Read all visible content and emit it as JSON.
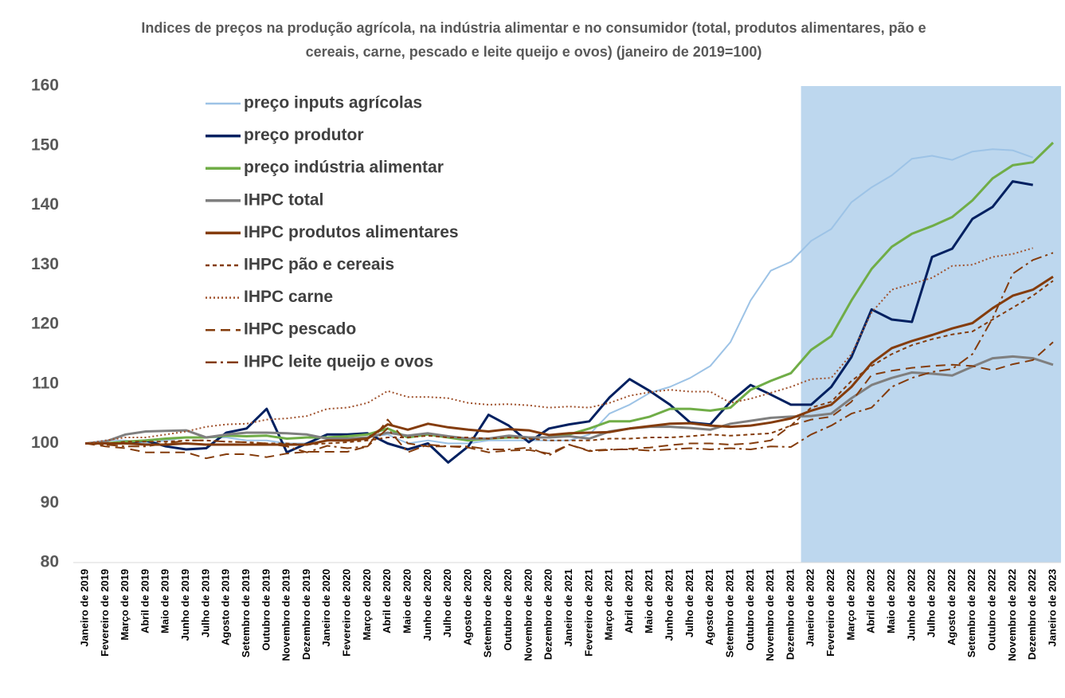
{
  "chart_data": {
    "type": "line",
    "title": "Indices de preços na produção agrícola, na indústria alimentar e no consumidor (total, produtos alimentares, pão e cereais, carne, pescado e leite queijo e ovos) (janeiro de 2019=100)",
    "categories": [
      "Janeiro de 2019",
      "Fevereiro de 2019",
      "Março de 2019",
      "Abril de 2019",
      "Maio de 2019",
      "Junho de 2019",
      "Julho de 2019",
      "Agosto de 2019",
      "Setembro de 2019",
      "Outubro de 2019",
      "Novembro de 2019",
      "Dezembro de 2019",
      "Janeiro de 2020",
      "Fevereiro de 2020",
      "Março de 2020",
      "Abril de 2020",
      "Maio de 2020",
      "Junho de 2020",
      "Julho de 2020",
      "Agosto de 2020",
      "Setembro de 2020",
      "Outubro de 2020",
      "Novembro de 2020",
      "Dezembro de 2020",
      "Janeiro de 2021",
      "Fevereiro de 2021",
      "Março de 2021",
      "Abril de 2021",
      "Maio de 2021",
      "Junho de 2021",
      "Julho de 2021",
      "Agosto de 2021",
      "Setembro de 2021",
      "Outubro de 2021",
      "Novembro de 2021",
      "Dezembro de 2021",
      "Janeiro de 2022",
      "Fevereiro de 2022",
      "Março de 2022",
      "Abril de 2022",
      "Maio de 2022",
      "Junho de 2022",
      "Julho de 2022",
      "Agosto de 2022",
      "Setembro de 2022",
      "Outubro de 2022",
      "Novembro de 2022",
      "Dezembro de 2022",
      "Janeiro de 2023"
    ],
    "series": [
      {
        "name": "preço inputs agrícolas",
        "color": "#9dc3e6",
        "dash": "solid",
        "width": 2,
        "values": [
          100,
          100.5,
          100.5,
          100,
          100.5,
          101,
          101,
          101,
          100.5,
          100.5,
          100,
          100,
          100.5,
          100.5,
          101,
          101.5,
          100,
          100.5,
          100,
          100,
          100.5,
          100.5,
          100.5,
          100.5,
          100.5,
          101.5,
          105,
          106.5,
          108.5,
          109.5,
          111,
          113,
          117,
          124,
          129,
          130.5,
          134,
          136,
          140.5,
          143,
          145,
          147.8,
          148.3,
          147.6,
          149,
          149.4,
          149.2,
          148,
          null
        ]
      },
      {
        "name": "preço produtor",
        "color": "#002060",
        "dash": "solid",
        "width": 3,
        "values": [
          100,
          100,
          100,
          100.5,
          99.5,
          99,
          99.2,
          101.8,
          102.5,
          105.8,
          98.5,
          100,
          101.5,
          101.5,
          101.7,
          100,
          99,
          100,
          96.8,
          99.5,
          104.8,
          103,
          100.2,
          102.5,
          103.2,
          103.7,
          107.7,
          110.8,
          108.8,
          106.5,
          103.5,
          103.2,
          107,
          109.8,
          108.2,
          106.5,
          106.5,
          109.5,
          114.5,
          122.5,
          120.8,
          120.4,
          131.3,
          132.7,
          137.7,
          139.7,
          144,
          143.4,
          null
        ]
      },
      {
        "name": "preço indústria alimentar",
        "color": "#70ad47",
        "dash": "solid",
        "width": 3,
        "values": [
          100,
          100,
          100.3,
          100.5,
          100.8,
          101,
          101,
          101.3,
          101.2,
          101.3,
          100.8,
          101,
          101,
          101.2,
          101.5,
          102.5,
          101,
          101.5,
          101,
          100.5,
          100.8,
          101,
          101,
          101,
          101.5,
          102.5,
          103.7,
          103.7,
          104.5,
          105.8,
          105.8,
          105.5,
          106,
          109,
          110.5,
          111.8,
          115.7,
          118,
          124,
          129.3,
          133,
          135.2,
          136.5,
          138,
          140.8,
          144.5,
          146.7,
          147.2,
          150.5
        ]
      },
      {
        "name": "IHPC total",
        "color": "#7f7f7f",
        "dash": "solid",
        "width": 3,
        "values": [
          100,
          100.3,
          101.5,
          102,
          102.1,
          102.2,
          101,
          101.5,
          101.8,
          101.8,
          101.7,
          101.5,
          100.8,
          100.8,
          101,
          101.8,
          101.3,
          101.7,
          101.2,
          100.8,
          100.8,
          101.3,
          101,
          101,
          101.2,
          100.8,
          102,
          102.5,
          102.8,
          102.8,
          102.6,
          102.3,
          103.3,
          103.8,
          104.3,
          104.5,
          104.6,
          105,
          107.6,
          109.8,
          111,
          111.9,
          111.7,
          111.4,
          112.9,
          114.3,
          114.6,
          114.3,
          113.2
        ]
      },
      {
        "name": "IHPC produtos alimentares",
        "color": "#843c0c",
        "dash": "solid",
        "width": 3,
        "values": [
          100,
          100,
          100,
          99.8,
          99.8,
          100,
          99.8,
          99.8,
          99.8,
          99.8,
          99.8,
          99.8,
          100.5,
          100.5,
          100.8,
          103.2,
          102.3,
          103.3,
          102.7,
          102.3,
          102,
          102.4,
          102.2,
          101.4,
          101.7,
          101.8,
          101.9,
          102.5,
          102.9,
          103.3,
          103.4,
          103,
          102.8,
          103,
          103.5,
          104.2,
          105.5,
          106.5,
          109.5,
          113.5,
          116,
          117.2,
          118.2,
          119.3,
          120.2,
          122.7,
          124.8,
          125.8,
          128
        ]
      },
      {
        "name": "IHPC pão e cereais",
        "color": "#843c0c",
        "dash": "short",
        "width": 2,
        "values": [
          100,
          99.8,
          100.3,
          100.3,
          100.3,
          100.5,
          100.5,
          100.3,
          100.2,
          100,
          100,
          99.8,
          100,
          100.2,
          100.5,
          101,
          101,
          101.3,
          101,
          101,
          100.8,
          101,
          100.8,
          100.5,
          100.5,
          100.5,
          100.8,
          100.8,
          101,
          101,
          101.2,
          101.5,
          101.3,
          101.5,
          101.7,
          103,
          106,
          107,
          110.5,
          113,
          115,
          116.5,
          117.5,
          118.3,
          118.8,
          120.8,
          122.8,
          124.8,
          127.3
        ]
      },
      {
        "name": "IHPC carne",
        "color": "#a0522d",
        "dash": "dot",
        "width": 2,
        "values": [
          100,
          100.5,
          101,
          101,
          101.5,
          102,
          102.8,
          103.2,
          103.3,
          104,
          104.2,
          104.6,
          105.8,
          106,
          106.8,
          108.8,
          107.8,
          107.8,
          107.6,
          106.8,
          106.5,
          106.6,
          106.4,
          106,
          106.2,
          106,
          106.8,
          108,
          108.6,
          109,
          108.7,
          108.7,
          106.8,
          107.5,
          108.5,
          109.5,
          110.8,
          111,
          115,
          122,
          125.8,
          126.8,
          127.8,
          129.8,
          130,
          131.3,
          131.8,
          132.8,
          null
        ]
      },
      {
        "name": "IHPC pescado",
        "color": "#843c0c",
        "dash": "dash",
        "width": 2,
        "values": [
          100,
          99.5,
          99.2,
          98.5,
          98.5,
          98.5,
          97.5,
          98.2,
          98.2,
          97.7,
          98.3,
          98.6,
          98.6,
          98.6,
          99.5,
          104,
          100,
          99.5,
          99.5,
          99.3,
          98.5,
          98.8,
          98.9,
          98.3,
          99.8,
          98.7,
          98.9,
          99.1,
          99.3,
          99.7,
          100,
          100,
          99.8,
          100,
          100.5,
          103,
          104,
          104.5,
          107,
          111.5,
          112.2,
          112.7,
          113,
          113.2,
          113,
          112.3,
          113.3,
          114,
          117
        ]
      },
      {
        "name": "IHPC leite queijo e ovos",
        "color": "#843c0c",
        "dash": "dashdot",
        "width": 2,
        "values": [
          100,
          99.8,
          99.5,
          99.5,
          100,
          100.5,
          100.5,
          100.3,
          100.2,
          100,
          99.5,
          98.5,
          99.6,
          99.2,
          99.5,
          102.5,
          98.5,
          99.8,
          99.5,
          99.5,
          99,
          99,
          99.3,
          98,
          99.8,
          98.8,
          99,
          99,
          98.8,
          99,
          99.2,
          99,
          99.2,
          99,
          99.5,
          99.4,
          101.5,
          103,
          105,
          106,
          109.5,
          111,
          112,
          112.5,
          115,
          121,
          128.5,
          130.8,
          132
        ]
      }
    ],
    "ylim": [
      80,
      160
    ],
    "yticks": [
      80,
      90,
      100,
      110,
      120,
      130,
      140,
      150,
      160
    ],
    "grid": false,
    "legend": "top-left",
    "highlight": {
      "from": 36,
      "color": "#bdd7ee"
    }
  }
}
